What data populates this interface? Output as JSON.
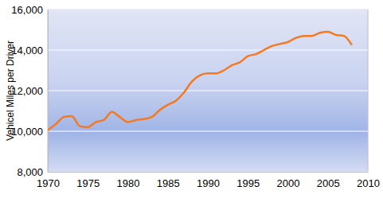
{
  "chart_data": {
    "type": "line",
    "y_label": "Vehicel Miles per Driver",
    "x": [
      1970,
      1971,
      1972,
      1973,
      1974,
      1975,
      1976,
      1977,
      1978,
      1979,
      1980,
      1981,
      1982,
      1983,
      1984,
      1985,
      1986,
      1987,
      1988,
      1989,
      1990,
      1991,
      1992,
      1993,
      1994,
      1995,
      1996,
      1997,
      1998,
      1999,
      2000,
      2001,
      2002,
      2003,
      2004,
      2005,
      2006,
      2007,
      2008
    ],
    "values": [
      10050,
      10350,
      10700,
      10750,
      10250,
      10200,
      10450,
      10550,
      10950,
      10700,
      10450,
      10550,
      10600,
      10700,
      11050,
      11300,
      11500,
      11900,
      12450,
      12750,
      12850,
      12850,
      13000,
      13250,
      13400,
      13700,
      13800,
      14000,
      14200,
      14300,
      14400,
      14600,
      14700,
      14700,
      14850,
      14900,
      14750,
      14700,
      14250
    ],
    "color": "#f47920",
    "xlim": [
      1970,
      2010
    ],
    "ylim": [
      8000,
      16000
    ],
    "xticks": [
      1970,
      1975,
      1980,
      1985,
      1990,
      1995,
      2000,
      2005,
      2010
    ],
    "yticks": [
      {
        "value": 8000,
        "label": "8,000"
      },
      {
        "value": 10000,
        "label": "10,000"
      },
      {
        "value": 12000,
        "label": "12,000"
      },
      {
        "value": 14000,
        "label": "14,000"
      },
      {
        "value": 16000,
        "label": "16,000"
      }
    ],
    "grid": true
  }
}
